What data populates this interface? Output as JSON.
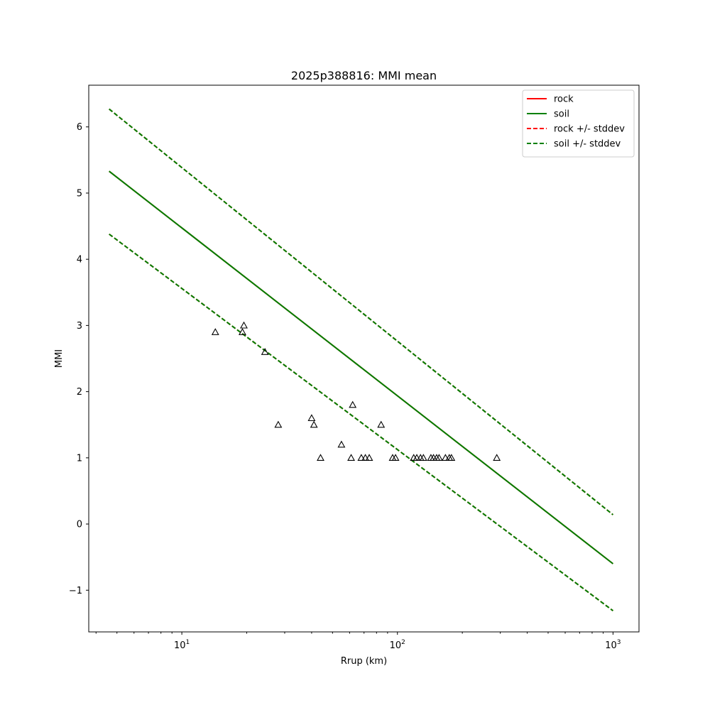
{
  "chart_data": {
    "type": "line",
    "title": "2025p388816: MMI mean",
    "xlabel": "Rrup (km)",
    "ylabel": "MMI",
    "xscale": "log",
    "xlim": [
      3.7,
      1320
    ],
    "ylim": [
      -1.63,
      6.63
    ],
    "grid": false,
    "legend_position": "top-right",
    "x_ticks": [
      {
        "value": 10,
        "base": "10",
        "exp": "1"
      },
      {
        "value": 100,
        "base": "10",
        "exp": "2"
      },
      {
        "value": 1000,
        "base": "10",
        "exp": "3"
      }
    ],
    "y_ticks": [
      {
        "value": -1,
        "label": "−1"
      },
      {
        "value": 0,
        "label": "0"
      },
      {
        "value": 1,
        "label": "1"
      },
      {
        "value": 2,
        "label": "2"
      },
      {
        "value": 3,
        "label": "3"
      },
      {
        "value": 4,
        "label": "4"
      },
      {
        "value": 5,
        "label": "5"
      },
      {
        "value": 6,
        "label": "6"
      }
    ],
    "series": [
      {
        "name": "rock",
        "style": "solid",
        "color": "#ff0000",
        "x": [
          4.6,
          1000
        ],
        "y": [
          5.33,
          -0.6
        ]
      },
      {
        "name": "soil",
        "style": "solid",
        "color": "#008000",
        "x": [
          4.6,
          1000
        ],
        "y": [
          5.33,
          -0.6
        ]
      },
      {
        "name": "rock +/- stddev",
        "style": "dashed",
        "color": "#ff0000",
        "x": [
          4.6,
          1000
        ],
        "y": [
          6.27,
          0.14
        ],
        "y2": [
          4.38,
          -1.31
        ]
      },
      {
        "name": "soil +/- stddev",
        "style": "dashed",
        "color": "#008000",
        "x": [
          4.6,
          1000
        ],
        "y": [
          6.27,
          0.14
        ],
        "y2": [
          4.38,
          -1.31
        ]
      }
    ],
    "stations": {
      "marker": "triangle-open",
      "points": [
        {
          "x": 14.3,
          "y": 2.9
        },
        {
          "x": 19.1,
          "y": 2.9
        },
        {
          "x": 19.4,
          "y": 3.0
        },
        {
          "x": 24.3,
          "y": 2.6
        },
        {
          "x": 28.0,
          "y": 1.5
        },
        {
          "x": 40.0,
          "y": 1.6
        },
        {
          "x": 41.0,
          "y": 1.5
        },
        {
          "x": 44.0,
          "y": 1.0
        },
        {
          "x": 55.0,
          "y": 1.2
        },
        {
          "x": 61.0,
          "y": 1.0
        },
        {
          "x": 62.0,
          "y": 1.8
        },
        {
          "x": 68.0,
          "y": 1.0
        },
        {
          "x": 71.0,
          "y": 1.0
        },
        {
          "x": 74.0,
          "y": 1.0
        },
        {
          "x": 84.0,
          "y": 1.5
        },
        {
          "x": 95.0,
          "y": 1.0
        },
        {
          "x": 98.0,
          "y": 1.0
        },
        {
          "x": 119.0,
          "y": 1.0
        },
        {
          "x": 123.0,
          "y": 1.0
        },
        {
          "x": 128.0,
          "y": 1.0
        },
        {
          "x": 132.0,
          "y": 1.0
        },
        {
          "x": 143.0,
          "y": 1.0
        },
        {
          "x": 147.0,
          "y": 1.0
        },
        {
          "x": 152.0,
          "y": 1.0
        },
        {
          "x": 156.0,
          "y": 1.0
        },
        {
          "x": 167.0,
          "y": 1.0
        },
        {
          "x": 174.0,
          "y": 1.0
        },
        {
          "x": 178.0,
          "y": 1.0
        },
        {
          "x": 289.0,
          "y": 1.0
        }
      ]
    }
  }
}
